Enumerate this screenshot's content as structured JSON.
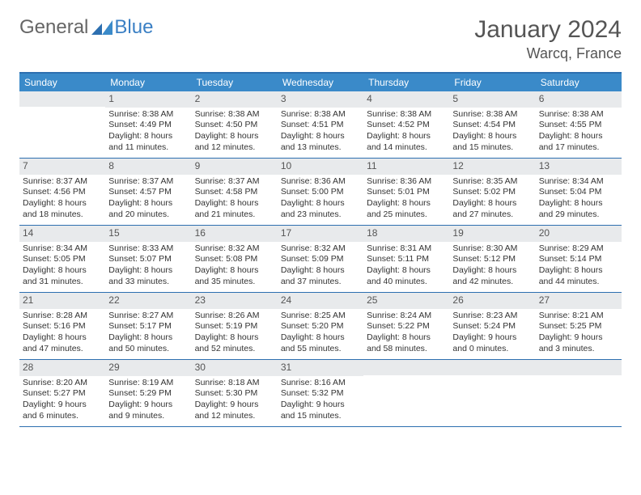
{
  "logo": {
    "text1": "General",
    "text2": "Blue"
  },
  "title": "January 2024",
  "location": "Warcq, France",
  "colors": {
    "header_bg": "#3a8ac9",
    "border": "#2d6fb0",
    "daybar_bg": "#e8eaec",
    "text": "#333333"
  },
  "weekdays": [
    "Sunday",
    "Monday",
    "Tuesday",
    "Wednesday",
    "Thursday",
    "Friday",
    "Saturday"
  ],
  "weeks": [
    [
      {
        "day": "",
        "blank": true
      },
      {
        "day": "1",
        "sunrise": "Sunrise: 8:38 AM",
        "sunset": "Sunset: 4:49 PM",
        "daylight1": "Daylight: 8 hours",
        "daylight2": "and 11 minutes."
      },
      {
        "day": "2",
        "sunrise": "Sunrise: 8:38 AM",
        "sunset": "Sunset: 4:50 PM",
        "daylight1": "Daylight: 8 hours",
        "daylight2": "and 12 minutes."
      },
      {
        "day": "3",
        "sunrise": "Sunrise: 8:38 AM",
        "sunset": "Sunset: 4:51 PM",
        "daylight1": "Daylight: 8 hours",
        "daylight2": "and 13 minutes."
      },
      {
        "day": "4",
        "sunrise": "Sunrise: 8:38 AM",
        "sunset": "Sunset: 4:52 PM",
        "daylight1": "Daylight: 8 hours",
        "daylight2": "and 14 minutes."
      },
      {
        "day": "5",
        "sunrise": "Sunrise: 8:38 AM",
        "sunset": "Sunset: 4:54 PM",
        "daylight1": "Daylight: 8 hours",
        "daylight2": "and 15 minutes."
      },
      {
        "day": "6",
        "sunrise": "Sunrise: 8:38 AM",
        "sunset": "Sunset: 4:55 PM",
        "daylight1": "Daylight: 8 hours",
        "daylight2": "and 17 minutes."
      }
    ],
    [
      {
        "day": "7",
        "sunrise": "Sunrise: 8:37 AM",
        "sunset": "Sunset: 4:56 PM",
        "daylight1": "Daylight: 8 hours",
        "daylight2": "and 18 minutes."
      },
      {
        "day": "8",
        "sunrise": "Sunrise: 8:37 AM",
        "sunset": "Sunset: 4:57 PM",
        "daylight1": "Daylight: 8 hours",
        "daylight2": "and 20 minutes."
      },
      {
        "day": "9",
        "sunrise": "Sunrise: 8:37 AM",
        "sunset": "Sunset: 4:58 PM",
        "daylight1": "Daylight: 8 hours",
        "daylight2": "and 21 minutes."
      },
      {
        "day": "10",
        "sunrise": "Sunrise: 8:36 AM",
        "sunset": "Sunset: 5:00 PM",
        "daylight1": "Daylight: 8 hours",
        "daylight2": "and 23 minutes."
      },
      {
        "day": "11",
        "sunrise": "Sunrise: 8:36 AM",
        "sunset": "Sunset: 5:01 PM",
        "daylight1": "Daylight: 8 hours",
        "daylight2": "and 25 minutes."
      },
      {
        "day": "12",
        "sunrise": "Sunrise: 8:35 AM",
        "sunset": "Sunset: 5:02 PM",
        "daylight1": "Daylight: 8 hours",
        "daylight2": "and 27 minutes."
      },
      {
        "day": "13",
        "sunrise": "Sunrise: 8:34 AM",
        "sunset": "Sunset: 5:04 PM",
        "daylight1": "Daylight: 8 hours",
        "daylight2": "and 29 minutes."
      }
    ],
    [
      {
        "day": "14",
        "sunrise": "Sunrise: 8:34 AM",
        "sunset": "Sunset: 5:05 PM",
        "daylight1": "Daylight: 8 hours",
        "daylight2": "and 31 minutes."
      },
      {
        "day": "15",
        "sunrise": "Sunrise: 8:33 AM",
        "sunset": "Sunset: 5:07 PM",
        "daylight1": "Daylight: 8 hours",
        "daylight2": "and 33 minutes."
      },
      {
        "day": "16",
        "sunrise": "Sunrise: 8:32 AM",
        "sunset": "Sunset: 5:08 PM",
        "daylight1": "Daylight: 8 hours",
        "daylight2": "and 35 minutes."
      },
      {
        "day": "17",
        "sunrise": "Sunrise: 8:32 AM",
        "sunset": "Sunset: 5:09 PM",
        "daylight1": "Daylight: 8 hours",
        "daylight2": "and 37 minutes."
      },
      {
        "day": "18",
        "sunrise": "Sunrise: 8:31 AM",
        "sunset": "Sunset: 5:11 PM",
        "daylight1": "Daylight: 8 hours",
        "daylight2": "and 40 minutes."
      },
      {
        "day": "19",
        "sunrise": "Sunrise: 8:30 AM",
        "sunset": "Sunset: 5:12 PM",
        "daylight1": "Daylight: 8 hours",
        "daylight2": "and 42 minutes."
      },
      {
        "day": "20",
        "sunrise": "Sunrise: 8:29 AM",
        "sunset": "Sunset: 5:14 PM",
        "daylight1": "Daylight: 8 hours",
        "daylight2": "and 44 minutes."
      }
    ],
    [
      {
        "day": "21",
        "sunrise": "Sunrise: 8:28 AM",
        "sunset": "Sunset: 5:16 PM",
        "daylight1": "Daylight: 8 hours",
        "daylight2": "and 47 minutes."
      },
      {
        "day": "22",
        "sunrise": "Sunrise: 8:27 AM",
        "sunset": "Sunset: 5:17 PM",
        "daylight1": "Daylight: 8 hours",
        "daylight2": "and 50 minutes."
      },
      {
        "day": "23",
        "sunrise": "Sunrise: 8:26 AM",
        "sunset": "Sunset: 5:19 PM",
        "daylight1": "Daylight: 8 hours",
        "daylight2": "and 52 minutes."
      },
      {
        "day": "24",
        "sunrise": "Sunrise: 8:25 AM",
        "sunset": "Sunset: 5:20 PM",
        "daylight1": "Daylight: 8 hours",
        "daylight2": "and 55 minutes."
      },
      {
        "day": "25",
        "sunrise": "Sunrise: 8:24 AM",
        "sunset": "Sunset: 5:22 PM",
        "daylight1": "Daylight: 8 hours",
        "daylight2": "and 58 minutes."
      },
      {
        "day": "26",
        "sunrise": "Sunrise: 8:23 AM",
        "sunset": "Sunset: 5:24 PM",
        "daylight1": "Daylight: 9 hours",
        "daylight2": "and 0 minutes."
      },
      {
        "day": "27",
        "sunrise": "Sunrise: 8:21 AM",
        "sunset": "Sunset: 5:25 PM",
        "daylight1": "Daylight: 9 hours",
        "daylight2": "and 3 minutes."
      }
    ],
    [
      {
        "day": "28",
        "sunrise": "Sunrise: 8:20 AM",
        "sunset": "Sunset: 5:27 PM",
        "daylight1": "Daylight: 9 hours",
        "daylight2": "and 6 minutes."
      },
      {
        "day": "29",
        "sunrise": "Sunrise: 8:19 AM",
        "sunset": "Sunset: 5:29 PM",
        "daylight1": "Daylight: 9 hours",
        "daylight2": "and 9 minutes."
      },
      {
        "day": "30",
        "sunrise": "Sunrise: 8:18 AM",
        "sunset": "Sunset: 5:30 PM",
        "daylight1": "Daylight: 9 hours",
        "daylight2": "and 12 minutes."
      },
      {
        "day": "31",
        "sunrise": "Sunrise: 8:16 AM",
        "sunset": "Sunset: 5:32 PM",
        "daylight1": "Daylight: 9 hours",
        "daylight2": "and 15 minutes."
      },
      {
        "day": "",
        "blank": true
      },
      {
        "day": "",
        "blank": true
      },
      {
        "day": "",
        "blank": true
      }
    ]
  ]
}
